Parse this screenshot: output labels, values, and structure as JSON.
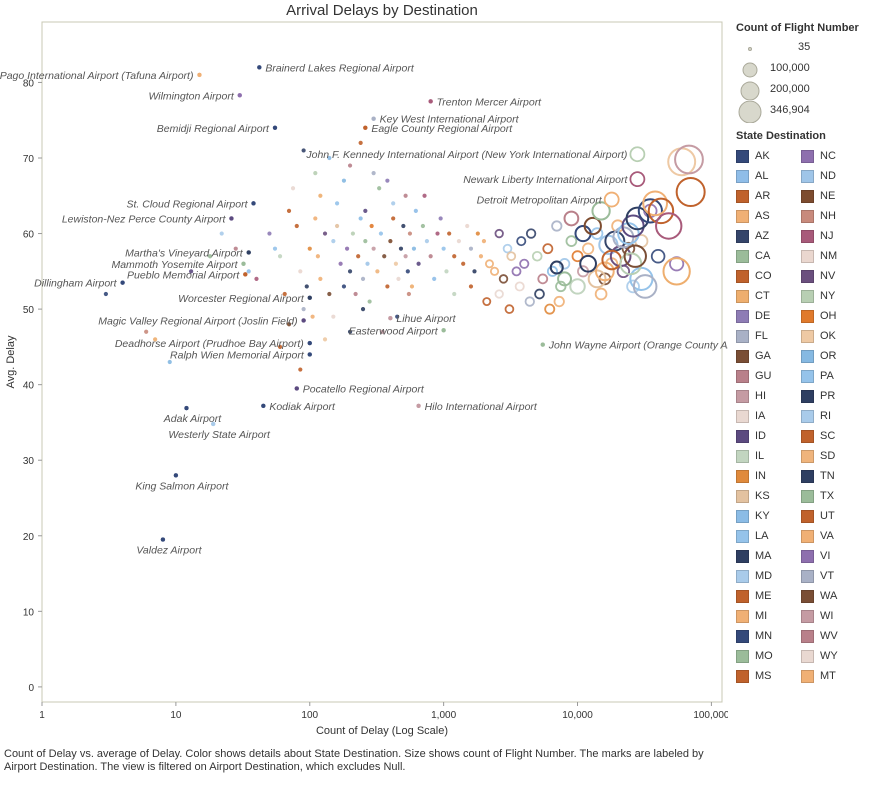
{
  "chart_data": {
    "type": "scatter",
    "title": "Arrival Delays by Destination",
    "xlabel": "Count of Delay (Log Scale)",
    "ylabel": "Avg. Delay",
    "x_scale": "log",
    "xlim": [
      1,
      120000
    ],
    "ylim": [
      -2,
      88
    ],
    "x_ticks": [
      1,
      10,
      100,
      1000,
      10000,
      100000
    ],
    "x_tick_labels": [
      "1",
      "10",
      "100",
      "1,000",
      "10,000",
      "100,000"
    ],
    "y_ticks": [
      0,
      10,
      20,
      30,
      40,
      50,
      60,
      70,
      80
    ],
    "y_tick_labels": [
      "0",
      "10",
      "20",
      "30",
      "40",
      "50",
      "60",
      "70",
      "80"
    ],
    "grid": false,
    "legend_position": "right",
    "labeled_points": [
      {
        "label": "Brainerd Lakes Regional Airport",
        "x": 42,
        "y": 82,
        "state": "MN"
      },
      {
        "label": "Pago Pago International Airport (Tafuna Airport)",
        "x": 15,
        "y": 81,
        "state": "AS"
      },
      {
        "label": "Wilmington Airport",
        "x": 30,
        "y": 78.3,
        "state": "NC"
      },
      {
        "label": "Trenton Mercer Airport",
        "x": 800,
        "y": 77.5,
        "state": "NJ"
      },
      {
        "label": "Key West International Airport",
        "x": 300,
        "y": 75.2,
        "state": "FL"
      },
      {
        "label": "Bemidji Regional Airport",
        "x": 55,
        "y": 74,
        "state": "MN"
      },
      {
        "label": "Eagle County Regional Airport",
        "x": 260,
        "y": 74,
        "state": "CO"
      },
      {
        "label": "John F. Kennedy International Airport (New York International Airport)",
        "x": 28000,
        "y": 70.5,
        "state": "NY"
      },
      {
        "label": "Newark Liberty International Airport",
        "x": 28000,
        "y": 67.2,
        "state": "NJ"
      },
      {
        "label": "Detroit Metropolitan Airport",
        "x": 18000,
        "y": 64.5,
        "state": "MI"
      },
      {
        "label": "St. Cloud Regional Airport",
        "x": 38,
        "y": 64,
        "state": "MN"
      },
      {
        "label": "Lewiston-Nez Perce County Airport",
        "x": 26,
        "y": 62,
        "state": "ID"
      },
      {
        "label": "Martha's Vineyard Airport",
        "x": 35,
        "y": 57.5,
        "state": "MA"
      },
      {
        "label": "Mammoth Yosemite Airport",
        "x": 32,
        "y": 56,
        "state": "CA"
      },
      {
        "label": "Pueblo Memorial Airport",
        "x": 33,
        "y": 54.6,
        "state": "CO"
      },
      {
        "label": "Dillingham Airport",
        "x": 4,
        "y": 53.5,
        "state": "AK"
      },
      {
        "label": "Worcester Regional Airport",
        "x": 100,
        "y": 51.5,
        "state": "MA"
      },
      {
        "label": "Magic Valley Regional Airport (Joslin Field)",
        "x": 90,
        "y": 48.5,
        "state": "ID"
      },
      {
        "label": "Lihue Airport",
        "x": 400,
        "y": 48.8,
        "state": "HI"
      },
      {
        "label": "Easterwood Airport",
        "x": 1000,
        "y": 47.2,
        "state": "TX"
      },
      {
        "label": "Deadhorse Airport (Prudhoe Bay Airport)",
        "x": 100,
        "y": 45.5,
        "state": "AK"
      },
      {
        "label": "John Wayne Airport (Orange County Airport)",
        "x": 5500,
        "y": 45.3,
        "state": "CA"
      },
      {
        "label": "Ralph Wien Memorial Airport",
        "x": 100,
        "y": 44,
        "state": "AK"
      },
      {
        "label": "Pocatello Regional Airport",
        "x": 80,
        "y": 39.5,
        "state": "ID"
      },
      {
        "label": "Adak Airport",
        "x": 12,
        "y": 36.9,
        "state": "AK"
      },
      {
        "label": "Kodiak Airport",
        "x": 45,
        "y": 37.2,
        "state": "AK"
      },
      {
        "label": "Hilo International Airport",
        "x": 650,
        "y": 37.2,
        "state": "HI"
      },
      {
        "label": "Westerly State Airport",
        "x": 19,
        "y": 34.8,
        "state": "RI"
      },
      {
        "label": "King Salmon Airport",
        "x": 10,
        "y": 28,
        "state": "AK"
      },
      {
        "label": "Valdez Airport",
        "x": 8,
        "y": 19.5,
        "state": "AK"
      }
    ],
    "size_legend": {
      "title": "Count of Flight Number",
      "entries": [
        "35",
        "100,000",
        "200,000",
        "346,904"
      ]
    },
    "color_legend": {
      "title": "State Destination",
      "entries": [
        {
          "state": "AK",
          "color": "#34497a"
        },
        {
          "state": "NC",
          "color": "#8e6fae"
        },
        {
          "state": "AL",
          "color": "#8fbde8"
        },
        {
          "state": "ND",
          "color": "#9fc5e8"
        },
        {
          "state": "AR",
          "color": "#c0622c"
        },
        {
          "state": "NE",
          "color": "#7d4c2f"
        },
        {
          "state": "AS",
          "color": "#f0b075"
        },
        {
          "state": "NH",
          "color": "#c88a7c"
        },
        {
          "state": "AZ",
          "color": "#35456a"
        },
        {
          "state": "NJ",
          "color": "#a85a7a"
        },
        {
          "state": "CA",
          "color": "#9bbc9a"
        },
        {
          "state": "NM",
          "color": "#ead7cf"
        },
        {
          "state": "CO",
          "color": "#c0622c"
        },
        {
          "state": "NV",
          "color": "#6b4f7e"
        },
        {
          "state": "CT",
          "color": "#eeae6e"
        },
        {
          "state": "NY",
          "color": "#b8cfb3"
        },
        {
          "state": "DE",
          "color": "#8e7cb5"
        },
        {
          "state": "OH",
          "color": "#e07a2c"
        },
        {
          "state": "FL",
          "color": "#a9b1c6"
        },
        {
          "state": "OK",
          "color": "#eec9a4"
        },
        {
          "state": "GA",
          "color": "#7a4e35"
        },
        {
          "state": "OR",
          "color": "#86b9e2"
        },
        {
          "state": "GU",
          "color": "#b9808a"
        },
        {
          "state": "PA",
          "color": "#95c3ea"
        },
        {
          "state": "HI",
          "color": "#c59ba3"
        },
        {
          "state": "PR",
          "color": "#2f3f62"
        },
        {
          "state": "IA",
          "color": "#e9d8d1"
        },
        {
          "state": "RI",
          "color": "#a9cbea"
        },
        {
          "state": "ID",
          "color": "#5c4a80"
        },
        {
          "state": "SC",
          "color": "#c0622c"
        },
        {
          "state": "IL",
          "color": "#c2d5c0"
        },
        {
          "state": "SD",
          "color": "#efb47c"
        },
        {
          "state": "IN",
          "color": "#e08a3c"
        },
        {
          "state": "TN",
          "color": "#2f3f62"
        },
        {
          "state": "KS",
          "color": "#e3c2a0"
        },
        {
          "state": "TX",
          "color": "#9bbc9a"
        },
        {
          "state": "KY",
          "color": "#8bbce6"
        },
        {
          "state": "UT",
          "color": "#c0622c"
        },
        {
          "state": "LA",
          "color": "#95c3ea"
        },
        {
          "state": "VA",
          "color": "#f0b075"
        },
        {
          "state": "MA",
          "color": "#2f3f62"
        },
        {
          "state": "VI",
          "color": "#8e6fae"
        },
        {
          "state": "MD",
          "color": "#a9cbea"
        },
        {
          "state": "VT",
          "color": "#a9b1c6"
        },
        {
          "state": "ME",
          "color": "#c0622c"
        },
        {
          "state": "WA",
          "color": "#7a4e35"
        },
        {
          "state": "MI",
          "color": "#f0b075"
        },
        {
          "state": "WI",
          "color": "#c59ba3"
        },
        {
          "state": "MN",
          "color": "#34497a"
        },
        {
          "state": "WV",
          "color": "#b9808a"
        },
        {
          "state": "MO",
          "color": "#9bbc9a"
        },
        {
          "state": "WY",
          "color": "#e9d8d1"
        },
        {
          "state": "MS",
          "color": "#c0622c"
        },
        {
          "state": "MT",
          "color": "#f0b075"
        }
      ]
    },
    "background_points": [
      [
        3,
        52
      ],
      [
        6,
        47
      ],
      [
        7,
        46
      ],
      [
        9,
        43
      ],
      [
        13,
        55
      ],
      [
        18,
        57
      ],
      [
        22,
        60
      ],
      [
        28,
        58
      ],
      [
        35,
        55
      ],
      [
        40,
        54
      ],
      [
        50,
        60
      ],
      [
        55,
        58
      ],
      [
        60,
        57
      ],
      [
        65,
        52
      ],
      [
        70,
        63
      ],
      [
        75,
        66
      ],
      [
        80,
        61
      ],
      [
        85,
        55
      ],
      [
        90,
        50
      ],
      [
        95,
        53
      ],
      [
        100,
        58
      ],
      [
        105,
        49
      ],
      [
        110,
        62
      ],
      [
        115,
        57
      ],
      [
        120,
        54
      ],
      [
        130,
        60
      ],
      [
        140,
        52
      ],
      [
        150,
        59
      ],
      [
        160,
        61
      ],
      [
        170,
        56
      ],
      [
        180,
        53
      ],
      [
        190,
        58
      ],
      [
        200,
        55
      ],
      [
        210,
        60
      ],
      [
        220,
        52
      ],
      [
        230,
        57
      ],
      [
        240,
        62
      ],
      [
        250,
        54
      ],
      [
        260,
        59
      ],
      [
        270,
        56
      ],
      [
        280,
        51
      ],
      [
        290,
        61
      ],
      [
        300,
        58
      ],
      [
        320,
        55
      ],
      [
        340,
        60
      ],
      [
        360,
        57
      ],
      [
        380,
        53
      ],
      [
        400,
        59
      ],
      [
        420,
        62
      ],
      [
        440,
        56
      ],
      [
        460,
        54
      ],
      [
        480,
        58
      ],
      [
        500,
        61
      ],
      [
        520,
        57
      ],
      [
        540,
        55
      ],
      [
        560,
        60
      ],
      [
        580,
        53
      ],
      [
        600,
        58
      ],
      [
        650,
        56
      ],
      [
        700,
        61
      ],
      [
        750,
        59
      ],
      [
        800,
        57
      ],
      [
        850,
        54
      ],
      [
        900,
        60
      ],
      [
        950,
        62
      ],
      [
        1000,
        58
      ],
      [
        1050,
        55
      ],
      [
        1100,
        60
      ],
      [
        1200,
        57
      ],
      [
        1300,
        59
      ],
      [
        1400,
        56
      ],
      [
        1500,
        61
      ],
      [
        1600,
        58
      ],
      [
        1700,
        55
      ],
      [
        1800,
        60
      ],
      [
        1900,
        57
      ],
      [
        2000,
        59
      ],
      [
        2200,
        56
      ],
      [
        2400,
        55
      ],
      [
        2600,
        60
      ],
      [
        2800,
        54
      ],
      [
        3000,
        58
      ],
      [
        3200,
        57
      ],
      [
        3500,
        55
      ],
      [
        3800,
        59
      ],
      [
        4000,
        56
      ],
      [
        4500,
        60
      ],
      [
        5000,
        57
      ],
      [
        5500,
        54
      ],
      [
        6000,
        58
      ],
      [
        6500,
        55
      ],
      [
        7000,
        61
      ],
      [
        7500,
        53
      ],
      [
        8000,
        56
      ],
      [
        9000,
        59
      ],
      [
        10000,
        57
      ],
      [
        11000,
        55
      ],
      [
        12000,
        58
      ],
      [
        14000,
        60
      ],
      [
        16000,
        54
      ],
      [
        60,
        45
      ],
      [
        70,
        48
      ],
      [
        85,
        42
      ],
      [
        130,
        46
      ],
      [
        150,
        49
      ],
      [
        200,
        47
      ],
      [
        250,
        50
      ],
      [
        350,
        47
      ],
      [
        450,
        49
      ],
      [
        550,
        52
      ],
      [
        120,
        65
      ],
      [
        180,
        67
      ],
      [
        260,
        63
      ],
      [
        330,
        66
      ],
      [
        420,
        64
      ],
      [
        520,
        65
      ],
      [
        620,
        63
      ],
      [
        720,
        65
      ],
      [
        380,
        67
      ],
      [
        160,
        64
      ],
      [
        1200,
        52
      ],
      [
        1600,
        53
      ],
      [
        2100,
        51
      ],
      [
        2600,
        52
      ],
      [
        3100,
        50
      ],
      [
        3700,
        53
      ],
      [
        4400,
        51
      ],
      [
        5200,
        52
      ],
      [
        6200,
        50
      ],
      [
        7300,
        51
      ],
      [
        15000,
        52
      ],
      [
        18000,
        56
      ],
      [
        20000,
        61
      ],
      [
        22000,
        55
      ],
      [
        24000,
        58
      ],
      [
        26000,
        53
      ],
      [
        30000,
        59
      ],
      [
        35000,
        63
      ],
      [
        40000,
        57
      ],
      [
        55000,
        56
      ],
      [
        90,
        71
      ],
      [
        110,
        68
      ],
      [
        200,
        69
      ],
      [
        240,
        72
      ],
      [
        140,
        70
      ],
      [
        300,
        68
      ]
    ],
    "big_points": [
      [
        17000,
        58.5
      ],
      [
        19000,
        59
      ],
      [
        21000,
        57
      ],
      [
        22000,
        59.5
      ],
      [
        24000,
        60
      ],
      [
        26000,
        61
      ],
      [
        28000,
        62
      ],
      [
        30000,
        54
      ],
      [
        32000,
        53
      ],
      [
        35000,
        63
      ],
      [
        38000,
        64
      ],
      [
        42000,
        63
      ],
      [
        48000,
        61
      ],
      [
        55000,
        55
      ],
      [
        60000,
        69.5
      ],
      [
        68000,
        69.8
      ],
      [
        70000,
        65.5
      ],
      [
        14000,
        54
      ],
      [
        16000,
        55
      ],
      [
        18000,
        56.5
      ],
      [
        9000,
        62
      ],
      [
        11000,
        60
      ],
      [
        13000,
        61
      ],
      [
        15000,
        63
      ],
      [
        25000,
        56
      ],
      [
        27000,
        57
      ],
      [
        12000,
        56
      ],
      [
        10000,
        53
      ],
      [
        8000,
        54
      ],
      [
        7000,
        55.5
      ]
    ]
  },
  "footnote": "Count of Delay vs. average of Delay.  Color shows details about State Destination.  Size shows count of Flight Number.  The marks are labeled by Airport Destination. The view is filtered on Airport Destination, which excludes Null."
}
